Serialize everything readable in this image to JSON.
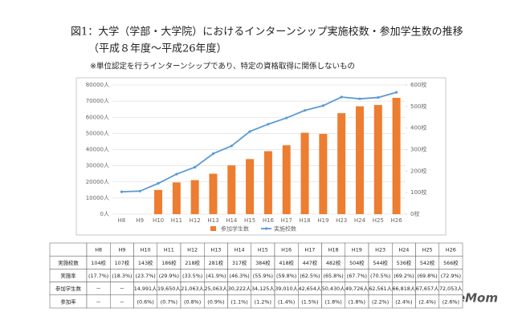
{
  "header": {
    "title": "図1：大学（学部・大学院）におけるインターンシップ実施校数・参加学生数の推移",
    "subtitle": "（平成８年度～平成26年度）",
    "note": "※単位認定を行うインターンシップであり、特定の資格取得に関係しないもの"
  },
  "chart_data": {
    "type": "bar-line",
    "categories": [
      "H8",
      "H9",
      "H10",
      "H11",
      "H12",
      "H13",
      "H14",
      "H15",
      "H16",
      "H17",
      "H18",
      "H19",
      "H23",
      "H24",
      "H25",
      "H26"
    ],
    "series": [
      {
        "name": "参加学生数",
        "color": "#ed7d31",
        "type": "bar",
        "values": [
          null,
          null,
          14991,
          19650,
          21063,
          25063,
          30222,
          34125,
          39010,
          42654,
          50430,
          49726,
          62561,
          66818,
          67657,
          72053
        ]
      },
      {
        "name": "実施校数",
        "color": "#5b9bd5",
        "type": "line",
        "axis": "y2",
        "values": [
          104,
          107,
          143,
          186,
          218,
          281,
          317,
          384,
          418,
          447,
          482,
          504,
          544,
          536,
          542,
          566
        ]
      }
    ],
    "ylim": [
      0,
      80000
    ],
    "yticks": [
      {
        "value": 0,
        "label": "0人"
      },
      {
        "value": 10000,
        "label": "10000人"
      },
      {
        "value": 20000,
        "label": "20000人"
      },
      {
        "value": 30000,
        "label": "30000人"
      },
      {
        "value": 40000,
        "label": "40000人"
      },
      {
        "value": 50000,
        "label": "50000人"
      },
      {
        "value": 60000,
        "label": "60000人"
      },
      {
        "value": 70000,
        "label": "70000人"
      },
      {
        "value": 80000,
        "label": "80000人"
      }
    ],
    "y2lim": [
      0,
      600
    ],
    "y2ticks": [
      {
        "value": 0,
        "label": "0校"
      },
      {
        "value": 100,
        "label": "100校"
      },
      {
        "value": 200,
        "label": "200校"
      },
      {
        "value": 300,
        "label": "300校"
      },
      {
        "value": 400,
        "label": "400校"
      },
      {
        "value": 500,
        "label": "500校"
      },
      {
        "value": 600,
        "label": "600校"
      }
    ],
    "grid": true,
    "legend": "bottom"
  },
  "table": {
    "columns": [
      "H8",
      "H9",
      "H10",
      "H11",
      "H12",
      "H13",
      "H14",
      "H15",
      "H16",
      "H17",
      "H18",
      "H19",
      "H23",
      "H24",
      "H25",
      "H26"
    ],
    "rows": [
      {
        "label": "実施校数",
        "cells": [
          "104校",
          "107校",
          "143校",
          "186校",
          "218校",
          "281校",
          "317校",
          "384校",
          "418校",
          "447校",
          "482校",
          "504校",
          "544校",
          "536校",
          "542校",
          "566校"
        ]
      },
      {
        "label": "実施率",
        "cells": [
          "(17.7%)",
          "(18.3%)",
          "(23.7%)",
          "(29.9%)",
          "(33.5%)",
          "(41.9%)",
          "(46.3%)",
          "(55.9%)",
          "(59.8%)",
          "(62.5%)",
          "(65.8%)",
          "(67.7%)",
          "(70.5%)",
          "(69.2%)",
          "(69.8%)",
          "(72.9%)"
        ]
      },
      {
        "label": "参加学生数",
        "cells": [
          "－",
          "－",
          "14,991人",
          "19,650人",
          "21,063人",
          "25,063人",
          "30,222人",
          "34,125人",
          "39,010人",
          "42,654人",
          "50,430人",
          "49,726人",
          "62,561人",
          "66,818人",
          "67,657人",
          "72,053人"
        ]
      },
      {
        "label": "参加率",
        "cells": [
          "－",
          "－",
          "(0.6%)",
          "(0.7%)",
          "(0.8%)",
          "(0.9%)",
          "(1.1%)",
          "(1.2%)",
          "(1.4%)",
          "(1.5%)",
          "(1.8%)",
          "(1.8%)",
          "(2.2%)",
          "(2.4%)",
          "(2.4%)",
          "(2.6%)"
        ]
      }
    ]
  },
  "logo": "ReseMom"
}
